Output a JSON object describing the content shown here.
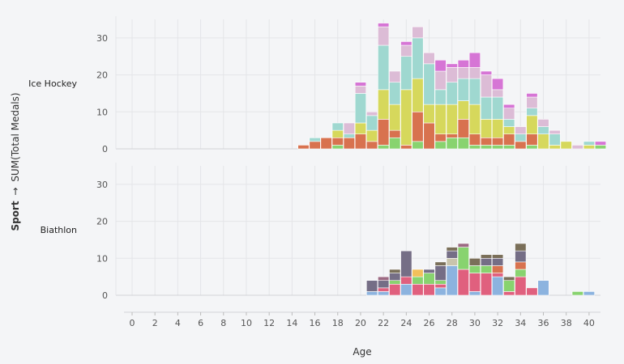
{
  "chart_data": {
    "type": "bar",
    "stacked": true,
    "xlabel": "Age",
    "ylabel": "Sport → SUM(Total Medals)",
    "ylabel_field": "Sport",
    "ylabel_arrow": "→",
    "ylabel_measure": "SUM(Total Medals)",
    "xlim": [
      0,
      41
    ],
    "xticks": [
      0,
      2,
      4,
      6,
      8,
      10,
      12,
      14,
      16,
      18,
      20,
      22,
      24,
      26,
      28,
      30,
      32,
      34,
      36,
      38,
      40
    ],
    "ylim": [
      0,
      35
    ],
    "yticks": [
      0,
      10,
      20,
      30
    ],
    "grid": true,
    "facets": [
      {
        "label": "Ice Hockey",
        "colors": [
          "#88d36f",
          "#d8724f",
          "#d6d85c",
          "#9fd8d0",
          "#dcbcd6",
          "#d675d5"
        ],
        "bars": [
          {
            "x": 15,
            "segments": [
              0,
              1,
              0,
              0,
              0,
              0
            ]
          },
          {
            "x": 16,
            "segments": [
              0,
              2,
              0,
              1,
              0,
              0
            ]
          },
          {
            "x": 17,
            "segments": [
              0,
              3,
              0,
              0,
              0,
              0
            ]
          },
          {
            "x": 18,
            "segments": [
              1,
              2,
              2,
              2,
              0,
              0
            ]
          },
          {
            "x": 19,
            "segments": [
              0,
              3,
              0,
              1,
              3,
              0
            ]
          },
          {
            "x": 20,
            "segments": [
              0,
              4,
              3,
              8,
              2,
              1
            ]
          },
          {
            "x": 21,
            "segments": [
              0,
              2,
              3,
              4,
              1,
              0
            ]
          },
          {
            "x": 22,
            "segments": [
              1,
              7,
              8,
              12,
              5,
              1
            ]
          },
          {
            "x": 23,
            "segments": [
              3,
              2,
              7,
              6,
              3,
              0
            ]
          },
          {
            "x": 24,
            "segments": [
              0,
              1,
              15,
              9,
              3,
              1
            ]
          },
          {
            "x": 25,
            "segments": [
              2,
              8,
              9,
              11,
              3,
              0
            ]
          },
          {
            "x": 26,
            "segments": [
              0,
              7,
              5,
              11,
              3,
              0
            ]
          },
          {
            "x": 27,
            "segments": [
              2,
              2,
              8,
              4,
              5,
              3
            ]
          },
          {
            "x": 28,
            "segments": [
              3,
              1,
              8,
              6,
              4,
              1
            ]
          },
          {
            "x": 29,
            "segments": [
              3,
              5,
              5,
              6,
              3,
              2
            ]
          },
          {
            "x": 30,
            "segments": [
              1,
              3,
              8,
              7,
              3,
              4
            ]
          },
          {
            "x": 31,
            "segments": [
              1,
              2,
              5,
              6,
              6,
              1
            ]
          },
          {
            "x": 32,
            "segments": [
              1,
              2,
              5,
              6,
              2,
              3
            ]
          },
          {
            "x": 33,
            "segments": [
              1,
              3,
              2,
              2,
              3,
              1
            ]
          },
          {
            "x": 34,
            "segments": [
              0,
              2,
              0,
              2,
              2,
              0
            ]
          },
          {
            "x": 35,
            "segments": [
              1,
              3,
              5,
              2,
              3,
              1
            ]
          },
          {
            "x": 36,
            "segments": [
              0,
              0,
              4,
              2,
              2,
              0
            ]
          },
          {
            "x": 37,
            "segments": [
              0,
              0,
              1,
              3,
              1,
              0
            ]
          },
          {
            "x": 38,
            "segments": [
              0,
              0,
              2,
              0,
              0,
              0
            ]
          },
          {
            "x": 39,
            "segments": [
              0,
              0,
              0,
              0,
              1,
              0
            ]
          },
          {
            "x": 40,
            "segments": [
              0,
              0,
              1,
              1,
              0,
              0
            ]
          },
          {
            "x": 41,
            "segments": [
              1,
              0,
              0,
              0,
              0,
              1
            ]
          }
        ]
      },
      {
        "label": "Biathlon",
        "colors": [
          "#8cb3df",
          "#e0607e",
          "#88d36f",
          "#f2c05b",
          "#d8724f",
          "#c9c4ac",
          "#756e86",
          "#9c6a83",
          "#7a6f59"
        ],
        "bars": [
          {
            "x": 21,
            "segments": [
              1,
              0,
              0,
              0,
              0,
              0,
              3,
              0,
              0
            ]
          },
          {
            "x": 22,
            "segments": [
              1,
              1,
              0,
              0,
              0,
              0,
              2,
              1,
              0
            ]
          },
          {
            "x": 23,
            "segments": [
              0,
              3,
              1,
              0,
              0,
              0,
              2,
              0,
              1
            ]
          },
          {
            "x": 24,
            "segments": [
              3,
              2,
              0,
              0,
              0,
              0,
              7,
              0,
              0
            ]
          },
          {
            "x": 25,
            "segments": [
              0,
              3,
              2,
              2,
              0,
              0,
              0,
              0,
              0
            ]
          },
          {
            "x": 26,
            "segments": [
              0,
              3,
              3,
              0,
              0,
              0,
              1,
              0,
              0
            ]
          },
          {
            "x": 27,
            "segments": [
              2,
              1,
              1,
              0,
              0,
              0,
              4,
              0,
              1
            ]
          },
          {
            "x": 28,
            "segments": [
              8,
              0,
              0,
              0,
              0,
              2,
              2,
              0,
              1
            ]
          },
          {
            "x": 29,
            "segments": [
              0,
              7,
              6,
              0,
              0,
              0,
              0,
              1,
              0
            ]
          },
          {
            "x": 30,
            "segments": [
              1,
              5,
              2,
              0,
              0,
              0,
              0,
              0,
              2
            ]
          },
          {
            "x": 31,
            "segments": [
              0,
              6,
              2,
              0,
              0,
              0,
              2,
              0,
              1
            ]
          },
          {
            "x": 32,
            "segments": [
              5,
              1,
              0,
              0,
              2,
              0,
              2,
              0,
              1
            ]
          },
          {
            "x": 33,
            "segments": [
              0,
              1,
              3,
              0,
              0,
              0,
              0,
              0,
              1
            ]
          },
          {
            "x": 34,
            "segments": [
              0,
              5,
              2,
              0,
              2,
              0,
              3,
              0,
              2
            ]
          },
          {
            "x": 35,
            "segments": [
              0,
              2,
              0,
              0,
              0,
              0,
              0,
              0,
              0
            ]
          },
          {
            "x": 36,
            "segments": [
              4,
              0,
              0,
              0,
              0,
              0,
              0,
              0,
              0
            ]
          },
          {
            "x": 39,
            "segments": [
              0,
              0,
              1,
              0,
              0,
              0,
              0,
              0,
              0
            ]
          },
          {
            "x": 40,
            "segments": [
              1,
              0,
              0,
              0,
              0,
              0,
              0,
              0,
              0
            ]
          }
        ]
      }
    ]
  }
}
